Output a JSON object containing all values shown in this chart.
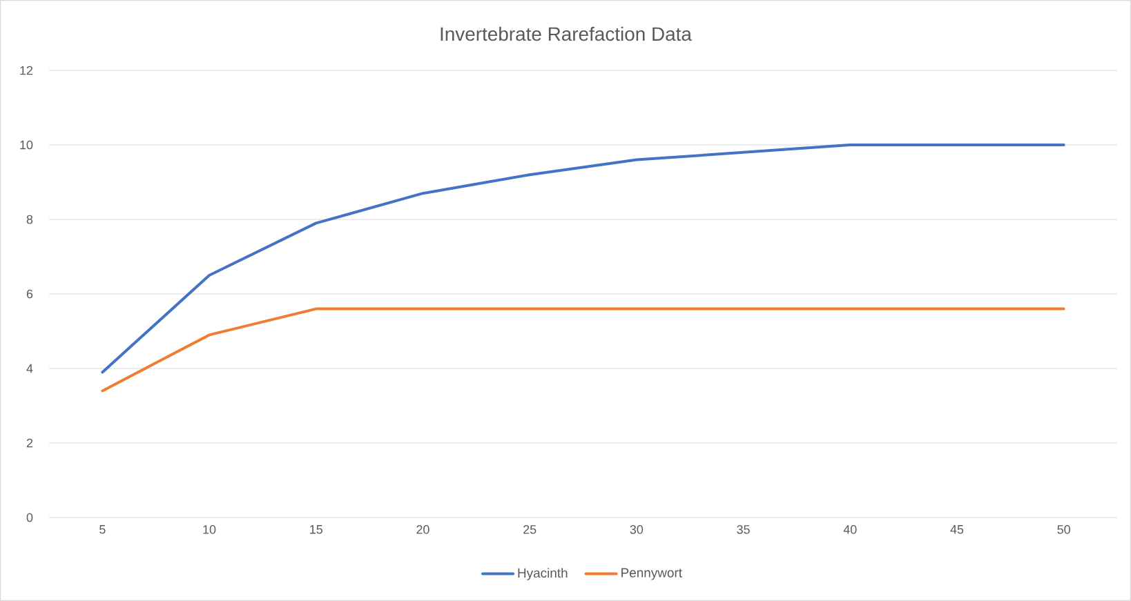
{
  "chart_data": {
    "type": "line",
    "title": "Invertebrate Rarefaction Data",
    "categories": [
      "5",
      "10",
      "15",
      "20",
      "25",
      "30",
      "35",
      "40",
      "45",
      "50"
    ],
    "series": [
      {
        "name": "Hyacinth",
        "color": "#4472c4",
        "values": [
          3.9,
          6.5,
          7.9,
          8.7,
          9.2,
          9.6,
          9.8,
          10,
          10,
          10
        ]
      },
      {
        "name": "Pennywort",
        "color": "#ed7d31",
        "values": [
          3.4,
          4.9,
          5.6,
          5.6,
          5.6,
          5.6,
          5.6,
          5.6,
          5.6,
          5.6
        ]
      }
    ],
    "ylim": [
      0,
      12
    ],
    "yticks": [
      0,
      2,
      4,
      6,
      8,
      10,
      12
    ],
    "grid": "y",
    "legend": "bottom"
  }
}
